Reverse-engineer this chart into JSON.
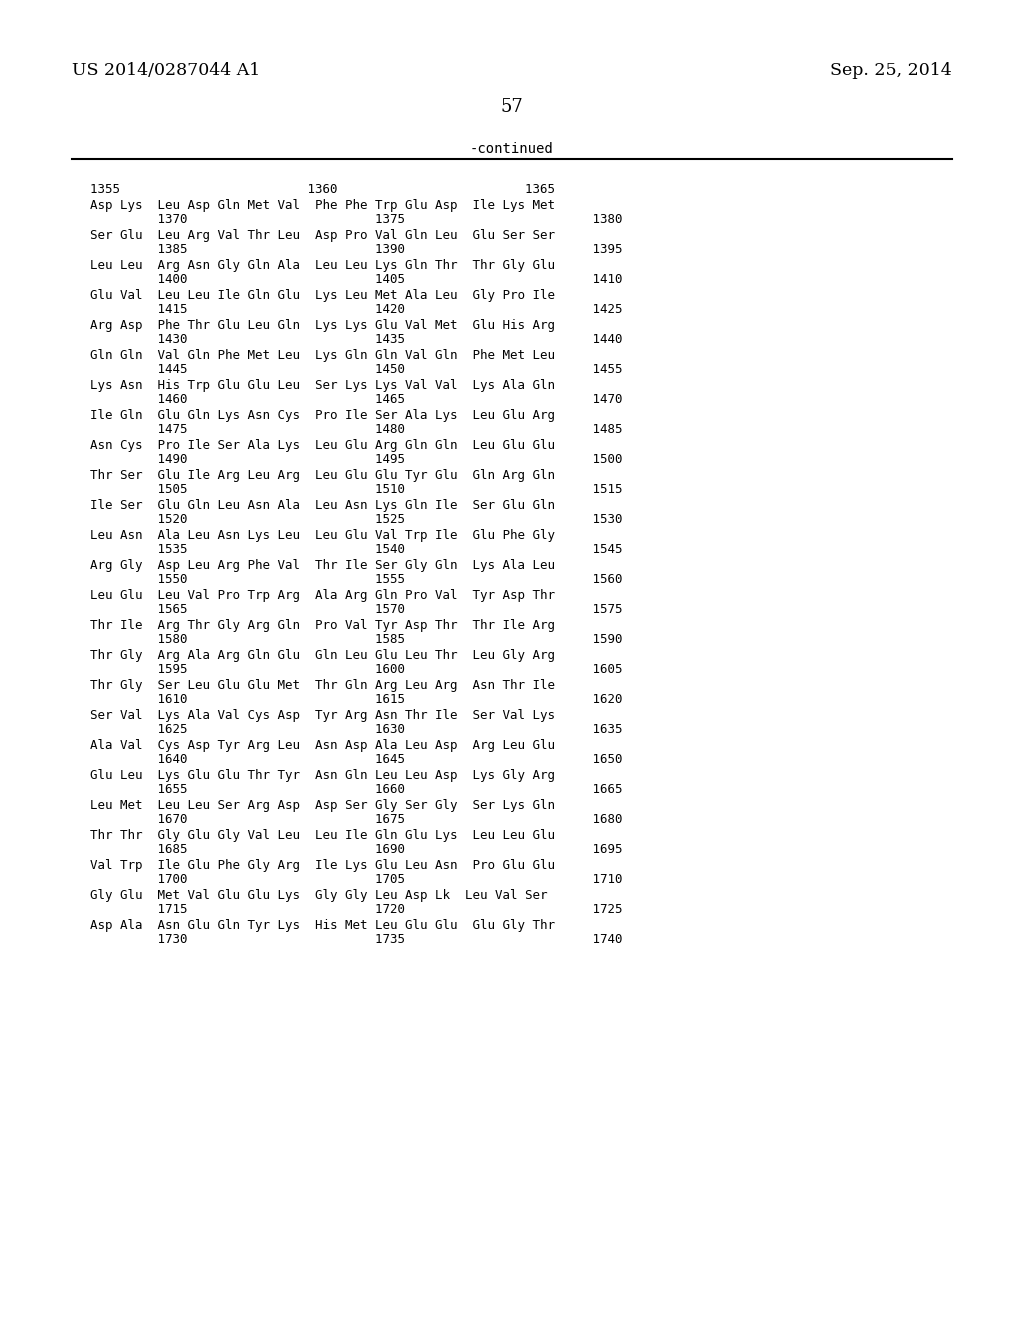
{
  "header_left": "US 2014/0287044 A1",
  "header_right": "Sep. 25, 2014",
  "page_number": "57",
  "continued_label": "-continued",
  "background_color": "#ffffff",
  "sequence_blocks": [
    [
      "1355                         1360                         1365",
      null
    ],
    [
      "Asp Lys  Leu Asp Gln Met Val  Phe Phe Trp Glu Asp  Ile Lys Met",
      "         1370                         1375                         1380"
    ],
    [
      "Ser Glu  Leu Arg Val Thr Leu  Asp Pro Val Gln Leu  Glu Ser Ser",
      "         1385                         1390                         1395"
    ],
    [
      "Leu Leu  Arg Asn Gly Gln Ala  Leu Leu Lys Gln Thr  Thr Gly Glu",
      "         1400                         1405                         1410"
    ],
    [
      "Glu Val  Leu Leu Ile Gln Glu  Lys Leu Met Ala Leu  Gly Pro Ile",
      "         1415                         1420                         1425"
    ],
    [
      "Arg Asp  Phe Thr Glu Leu Gln  Lys Lys Glu Val Met  Glu His Arg",
      "         1430                         1435                         1440"
    ],
    [
      "Gln Gln  Val Gln Phe Met Leu  Lys Gln Gln Val Gln  Phe Met Leu",
      "         1445                         1450                         1455"
    ],
    [
      "Lys Asn  His Trp Glu Glu Leu  Ser Lys Lys Val Val  Lys Ala Gln",
      "         1460                         1465                         1470"
    ],
    [
      "Ile Gln  Glu Gln Lys Asn Cys  Pro Ile Ser Ala Lys  Leu Glu Arg",
      "         1475                         1480                         1485"
    ],
    [
      "Asn Cys  Pro Ile Ser Ala Lys  Leu Glu Arg Gln Gln  Leu Glu Glu",
      "         1490                         1495                         1500"
    ],
    [
      "Thr Ser  Glu Ile Arg Leu Arg  Leu Glu Glu Tyr Glu  Gln Arg Gln",
      "         1505                         1510                         1515"
    ],
    [
      "Ile Ser  Glu Gln Leu Asn Ala  Leu Asn Lys Gln Ile  Ser Glu Gln",
      "         1520                         1525                         1530"
    ],
    [
      "Leu Asn  Ala Leu Asn Lys Leu  Leu Glu Val Trp Ile  Glu Phe Gly",
      "         1535                         1540                         1545"
    ],
    [
      "Arg Gly  Asp Leu Arg Phe Val  Thr Ile Ser Gly Gln  Lys Ala Leu",
      "         1550                         1555                         1560"
    ],
    [
      "Leu Glu  Leu Val Pro Trp Arg  Ala Arg Gln Pro Val  Tyr Asp Thr",
      "         1565                         1570                         1575"
    ],
    [
      "Thr Ile  Arg Thr Gly Arg Gln  Pro Val Tyr Asp Thr  Thr Ile Arg",
      "         1580                         1585                         1590"
    ],
    [
      "Thr Gly  Arg Ala Arg Gln Glu  Gln Leu Glu Leu Thr  Leu Gly Arg",
      "         1595                         1600                         1605"
    ],
    [
      "Thr Gly  Ser Leu Glu Glu Met  Thr Gln Arg Leu Arg  Asn Thr Ile",
      "         1610                         1615                         1620"
    ],
    [
      "Ser Val  Lys Ala Val Cys Asp  Tyr Arg Asn Thr Ile  Ser Val Lys",
      "         1625                         1630                         1635"
    ],
    [
      "Ala Val  Cys Asp Tyr Arg Leu  Asn Asp Ala Leu Asp  Arg Leu Glu",
      "         1640                         1645                         1650"
    ],
    [
      "Glu Leu  Lys Glu Glu Thr Tyr  Asn Gln Leu Leu Asp  Lys Gly Arg",
      "         1655                         1660                         1665"
    ],
    [
      "Leu Met  Leu Leu Ser Arg Asp  Asp Ser Gly Ser Gly  Ser Lys Gln",
      "         1670                         1675                         1680"
    ],
    [
      "Thr Thr  Gly Glu Gly Val Leu  Leu Ile Gln Glu Lys  Leu Leu Glu",
      "         1685                         1690                         1695"
    ],
    [
      "Val Trp  Ile Glu Phe Gly Arg  Ile Lys Glu Leu Asn  Pro Glu Glu",
      "         1700                         1705                         1710"
    ],
    [
      "Gly Glu  Met Val Glu Glu Lys  Gly Gly Leu Asp Lk  Leu Val Ser",
      "         1715                         1720                         1725"
    ],
    [
      "Asp Ala  Asn Glu Gln Tyr Lys  His Met Leu Glu Glu  Glu Gly Thr",
      "         1730                         1735                         1740"
    ]
  ],
  "font_size_header": 12.5,
  "font_size_seq": 9.0,
  "font_size_page": 13,
  "font_size_continued": 10
}
